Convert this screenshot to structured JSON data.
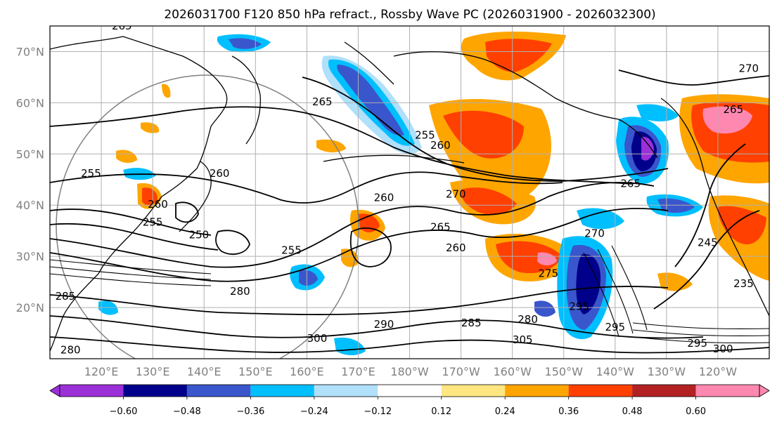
{
  "title": "2026031700 F120 850 hPa refract., Rossby Wave PC (2026031900 - 2026032300)",
  "map": {
    "lat_ticks": [
      "70°N",
      "60°N",
      "50°N",
      "40°N",
      "30°N",
      "20°N"
    ],
    "lon_ticks": [
      "120°E",
      "130°E",
      "140°E",
      "150°E",
      "160°E",
      "170°E",
      "180°W",
      "170°W",
      "160°W",
      "150°W",
      "140°W",
      "130°W",
      "120°W"
    ],
    "contour_labels": [
      {
        "text": "265",
        "lon": 163,
        "lat": 59.5
      },
      {
        "text": "265",
        "lon": 243,
        "lat": 58
      },
      {
        "text": "270",
        "lon": 246,
        "lat": 66
      },
      {
        "text": "255",
        "lon": 183,
        "lat": 53
      },
      {
        "text": "260",
        "lon": 186,
        "lat": 51
      },
      {
        "text": "260",
        "lon": 175,
        "lat": 40.8
      },
      {
        "text": "270",
        "lon": 189,
        "lat": 41.5
      },
      {
        "text": "265",
        "lon": 223,
        "lat": 43.5
      },
      {
        "text": "270",
        "lon": 216,
        "lat": 33.8
      },
      {
        "text": "275",
        "lon": 207,
        "lat": 26
      },
      {
        "text": "260",
        "lon": 189,
        "lat": 31
      },
      {
        "text": "265",
        "lon": 186,
        "lat": 35
      },
      {
        "text": "255",
        "lon": 157,
        "lat": 30.5
      },
      {
        "text": "280",
        "lon": 147,
        "lat": 22.5
      },
      {
        "text": "290",
        "lon": 175,
        "lat": 16
      },
      {
        "text": "285",
        "lon": 192,
        "lat": 16.3
      },
      {
        "text": "280",
        "lon": 203,
        "lat": 17
      },
      {
        "text": "295",
        "lon": 213,
        "lat": 19.5
      },
      {
        "text": "295",
        "lon": 220,
        "lat": 15.5
      },
      {
        "text": "300",
        "lon": 162,
        "lat": 13.3
      },
      {
        "text": "305",
        "lon": 202,
        "lat": 13
      },
      {
        "text": "295",
        "lon": 236,
        "lat": 12.3
      },
      {
        "text": "300",
        "lon": 241,
        "lat": 11.2
      },
      {
        "text": "245",
        "lon": 238,
        "lat": 32
      },
      {
        "text": "235",
        "lon": 245,
        "lat": 24
      },
      {
        "text": "260",
        "lon": 131,
        "lat": 39.5
      },
      {
        "text": "255",
        "lon": 130,
        "lat": 36
      },
      {
        "text": "250",
        "lon": 139,
        "lat": 33.5
      },
      {
        "text": "255",
        "lon": 118,
        "lat": 45.5
      },
      {
        "text": "260",
        "lon": 143,
        "lat": 45.5
      },
      {
        "text": "265",
        "lon": 124,
        "lat": 74.3
      },
      {
        "text": "280",
        "lon": 114,
        "lat": 11
      },
      {
        "text": "285",
        "lon": 113,
        "lat": 21.5
      }
    ]
  },
  "colorbar": {
    "tick_labels": [
      "−0.60",
      "−0.48",
      "−0.36",
      "−0.24",
      "−0.12",
      "0.12",
      "0.24",
      "0.36",
      "0.48",
      "0.60"
    ],
    "colors": {
      "lt_-0.60": "#9b30d8",
      "-0.60_-0.48": "#00008b",
      "-0.48_-0.36": "#3a56cc",
      "-0.36_-0.24": "#00bfff",
      "-0.24_-0.12": "#b0e0fa",
      "-0.12_0.12": "#ffffff",
      "0.12_0.24": "#ffe680",
      "0.24_0.36": "#ffa500",
      "0.36_0.48": "#ff4000",
      "0.48_0.60": "#b22222",
      "gt_0.60": "#ff88b0"
    }
  }
}
